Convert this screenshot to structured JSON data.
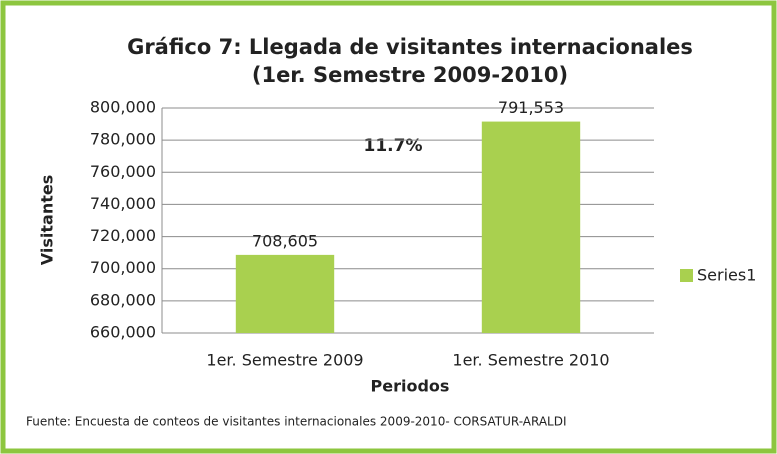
{
  "chart_data": {
    "type": "bar",
    "title": [
      "Gráfico 7: Llegada de visitantes internacionales",
      "(1er. Semestre 2009-2010)"
    ],
    "x_label": "Periodos",
    "y_label": "Visitantes",
    "categories": [
      "1er. Semestre 2009",
      "1er. Semestre 2010"
    ],
    "series": [
      {
        "name": "Series1",
        "color": "#a9d04f",
        "values": [
          708605,
          791553
        ],
        "value_labels": [
          "708,605",
          "791,553"
        ]
      }
    ],
    "ylim": [
      660000,
      800000
    ],
    "yticks": [
      {
        "value": 660000,
        "label": "660,000"
      },
      {
        "value": 680000,
        "label": "680,000"
      },
      {
        "value": 700000,
        "label": "700,000"
      },
      {
        "value": 720000,
        "label": "720,000"
      },
      {
        "value": 740000,
        "label": "740,000"
      },
      {
        "value": 760000,
        "label": "760,000"
      },
      {
        "value": 780000,
        "label": "780,000"
      },
      {
        "value": 800000,
        "label": "800,000"
      }
    ],
    "grid": true,
    "legend": "right",
    "annotations": [
      "11.7%"
    ],
    "source": "Fuente: Encuesta de conteos de  visitantes  internacionales 2009-2010- CORSATUR-ARALDI"
  }
}
